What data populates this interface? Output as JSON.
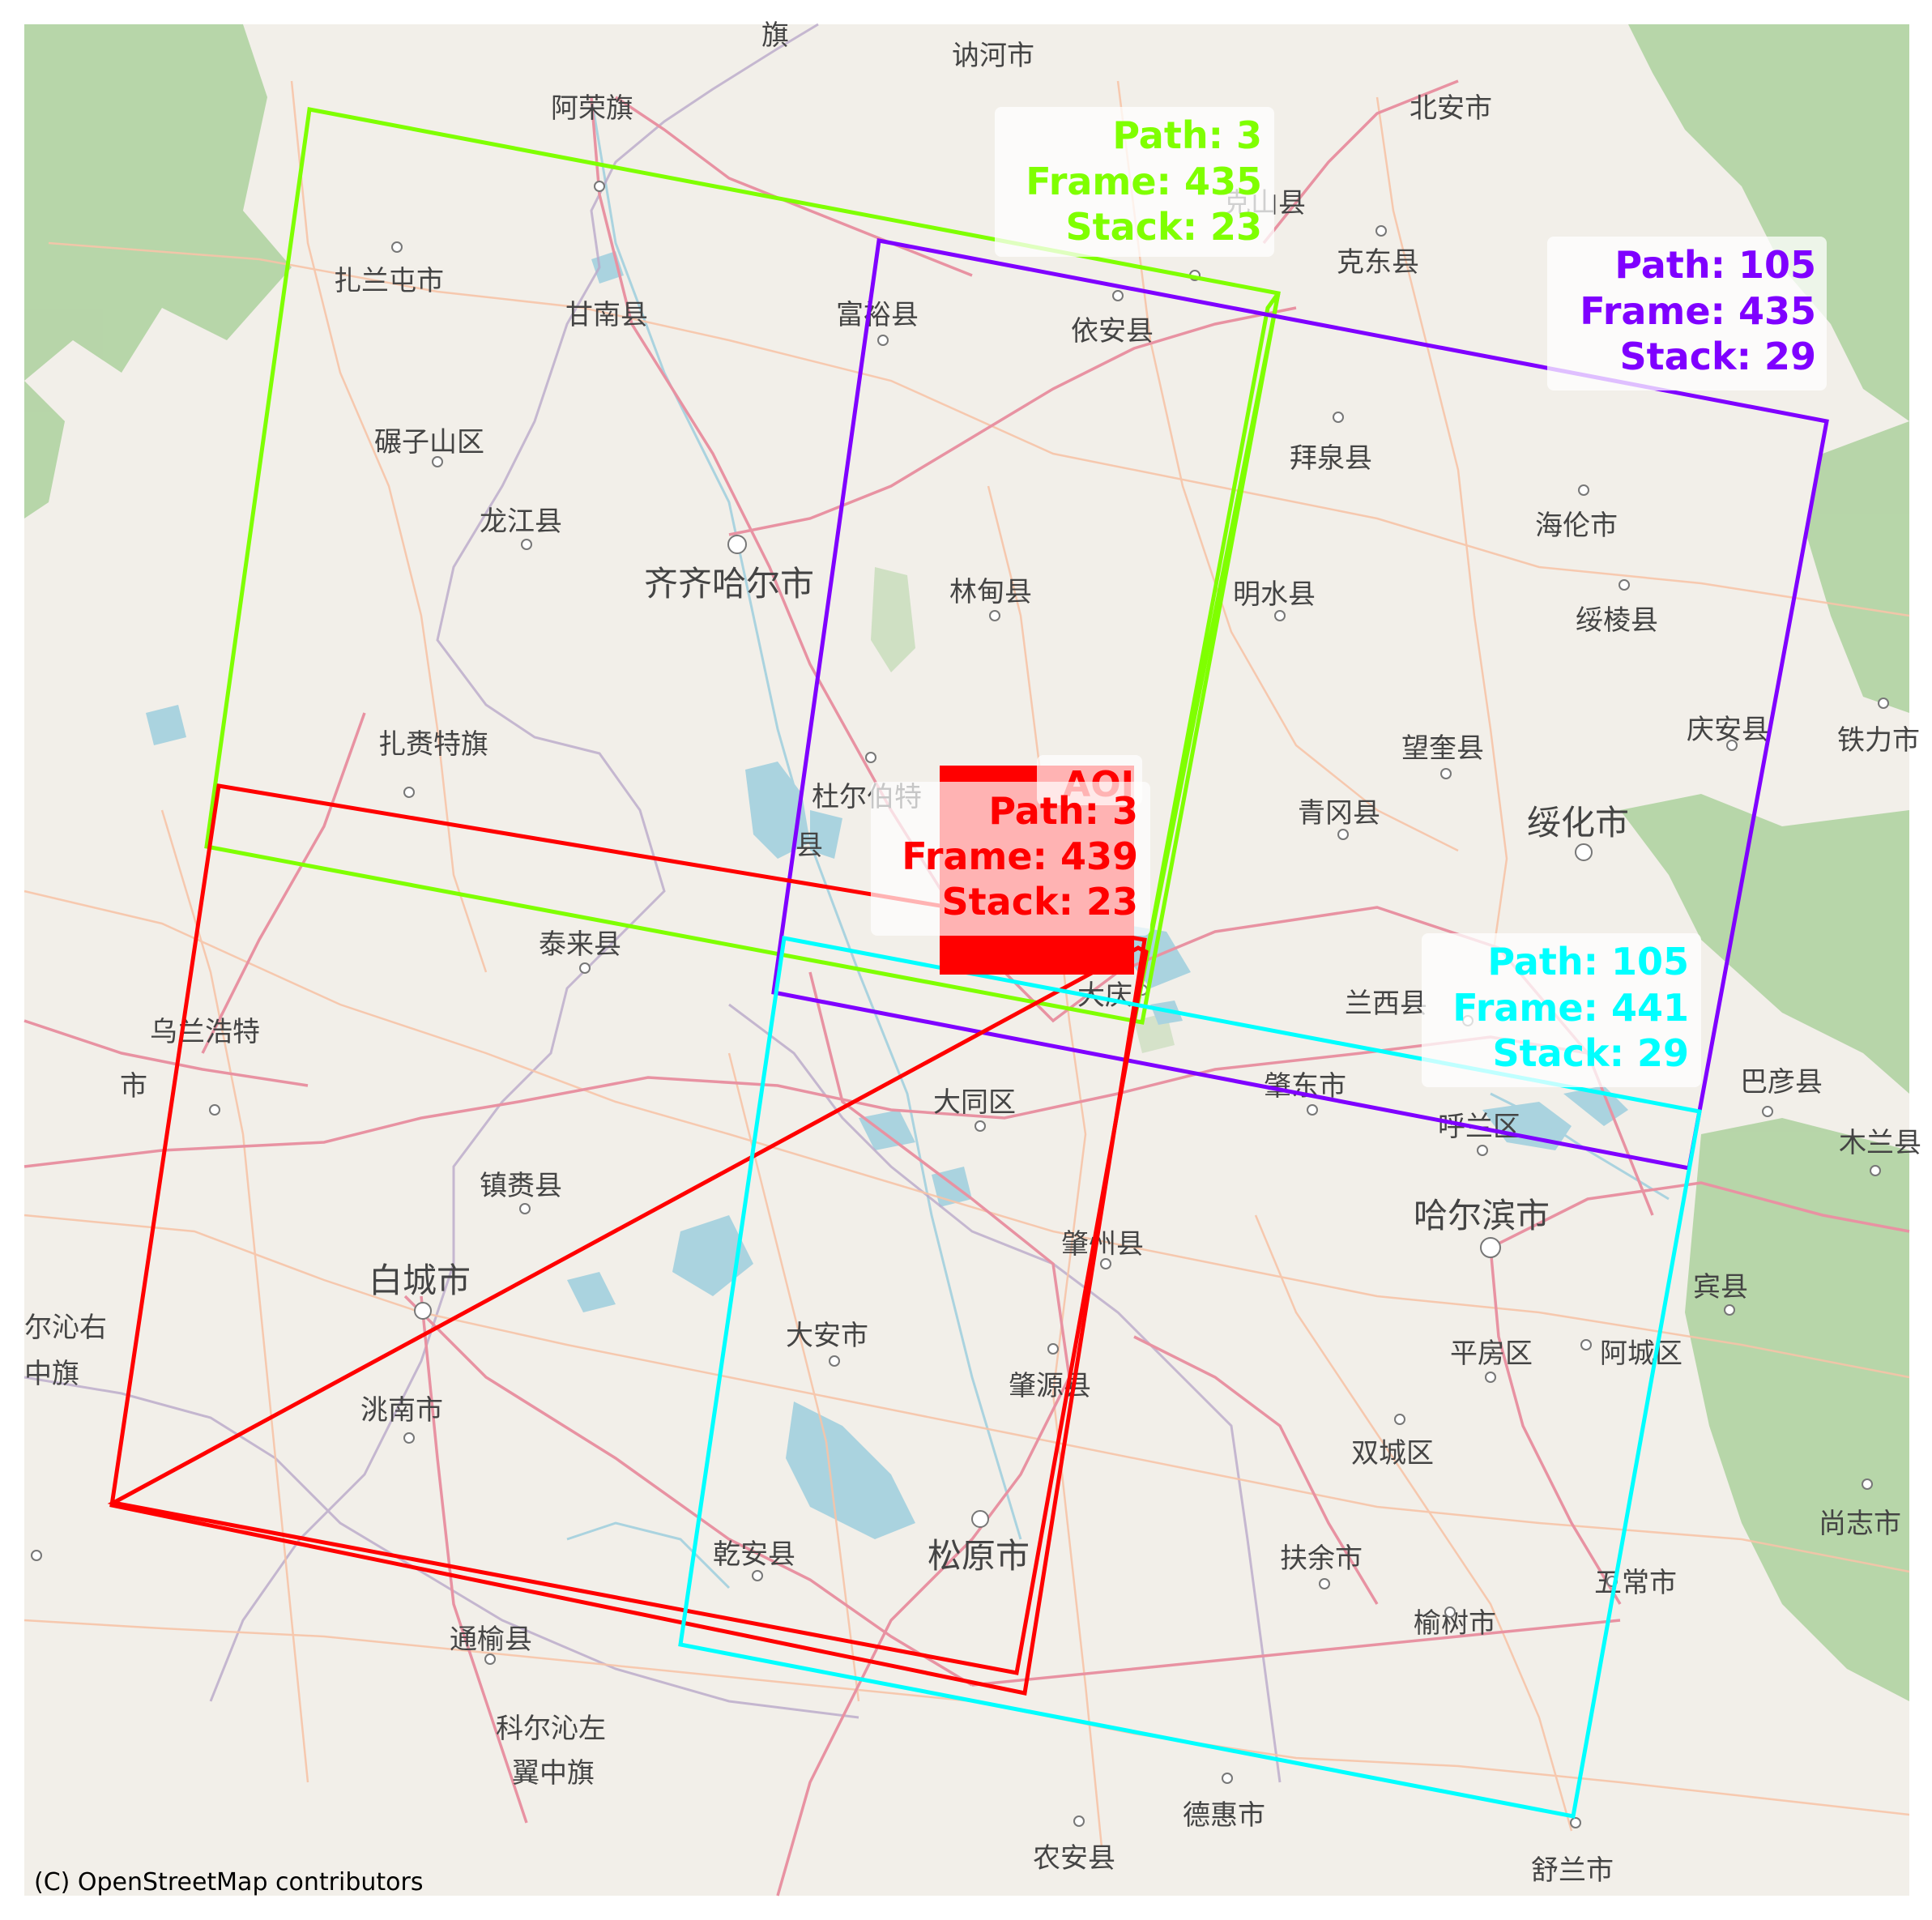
{
  "attribution": "(C) OpenStreetMap contributors",
  "colors": {
    "land": "#f2efe9",
    "forest": "#add19e",
    "water": "#aad3df",
    "road_major": "#e892a2",
    "road_minor": "#f7c4a8",
    "admin_boundary": "#b9a9c9",
    "aoi": "#ff0000"
  },
  "aoi": {
    "label": "AOI"
  },
  "footprints": [
    {
      "id": "p3-f435",
      "color": "#7fff00",
      "path_label": "Path: 3",
      "frame_label": "Frame: 435",
      "stack_label": "Stack: 23"
    },
    {
      "id": "p105-f435",
      "color": "#7f00ff",
      "path_label": "Path: 105",
      "frame_label": "Frame: 435",
      "stack_label": "Stack: 29"
    },
    {
      "id": "p3-f439",
      "color": "#ff0000",
      "path_label": "Path: 3",
      "frame_label": "Frame: 439",
      "stack_label": "Stack: 23"
    },
    {
      "id": "p105-f441",
      "color": "#00ffff",
      "path_label": "Path: 105",
      "frame_label": "Frame: 441",
      "stack_label": "Stack: 29"
    }
  ],
  "places": {
    "nehe": "讷河市",
    "arongqi": "阿荣旗",
    "beian": "北安市",
    "keshan": "克山县",
    "kedong": "克东县",
    "zhalantun": "扎兰屯市",
    "gannan": "甘南县",
    "fuyu": "富裕县",
    "yian": "依安县",
    "niantzishan": "碾子山区",
    "baiquan": "拜泉县",
    "longjiang": "龙江县",
    "qiqihar": "齐齐哈尔市",
    "hailun": "海伦市",
    "lindian": "林甸县",
    "mingshui": "明水县",
    "suiling": "绥棱县",
    "zhalaiteqi": "扎赉特旗",
    "qingan": "庆安县",
    "tieli": "铁力市",
    "duerbote": "杜尔伯特",
    "duerbote2": "县",
    "wangkui": "望奎县",
    "qinggang": "青冈县",
    "suihua": "绥化市",
    "tailai": "泰来县",
    "daqing": "大庆",
    "wulanhaote": "乌兰浩特",
    "wulanhaote2": "市",
    "lanxi": "兰西县",
    "zhaodong": "肇东市",
    "bayan": "巴彦县",
    "datong": "大同区",
    "hulan": "呼兰区",
    "mulan": "木兰县",
    "zhenlai": "镇赉县",
    "harbin": "哈尔滨市",
    "baicheng": "白城市",
    "zhaozhou": "肇州县",
    "binxian": "宾县",
    "kezuozhong1": "尔沁右",
    "kezuozhong2": "中旗",
    "daan": "大安市",
    "pingfang": "平房区",
    "acheng": "阿城区",
    "taonan": "洮南市",
    "zhaoyuan": "肇源县",
    "shuangcheng": "双城区",
    "shangzhi": "尚志市",
    "qianan": "乾安县",
    "songyuan": "松原市",
    "fuyushi": "扶余市",
    "wuchang": "五常市",
    "tongyu": "通榆县",
    "yushu": "榆树市",
    "kezuoq1": "科尔沁左",
    "kezuoq2": "翼中旗",
    "dehui": "德惠市",
    "nongan": "农安县",
    "shulan": "舒兰市",
    "qi_top": "旗"
  }
}
